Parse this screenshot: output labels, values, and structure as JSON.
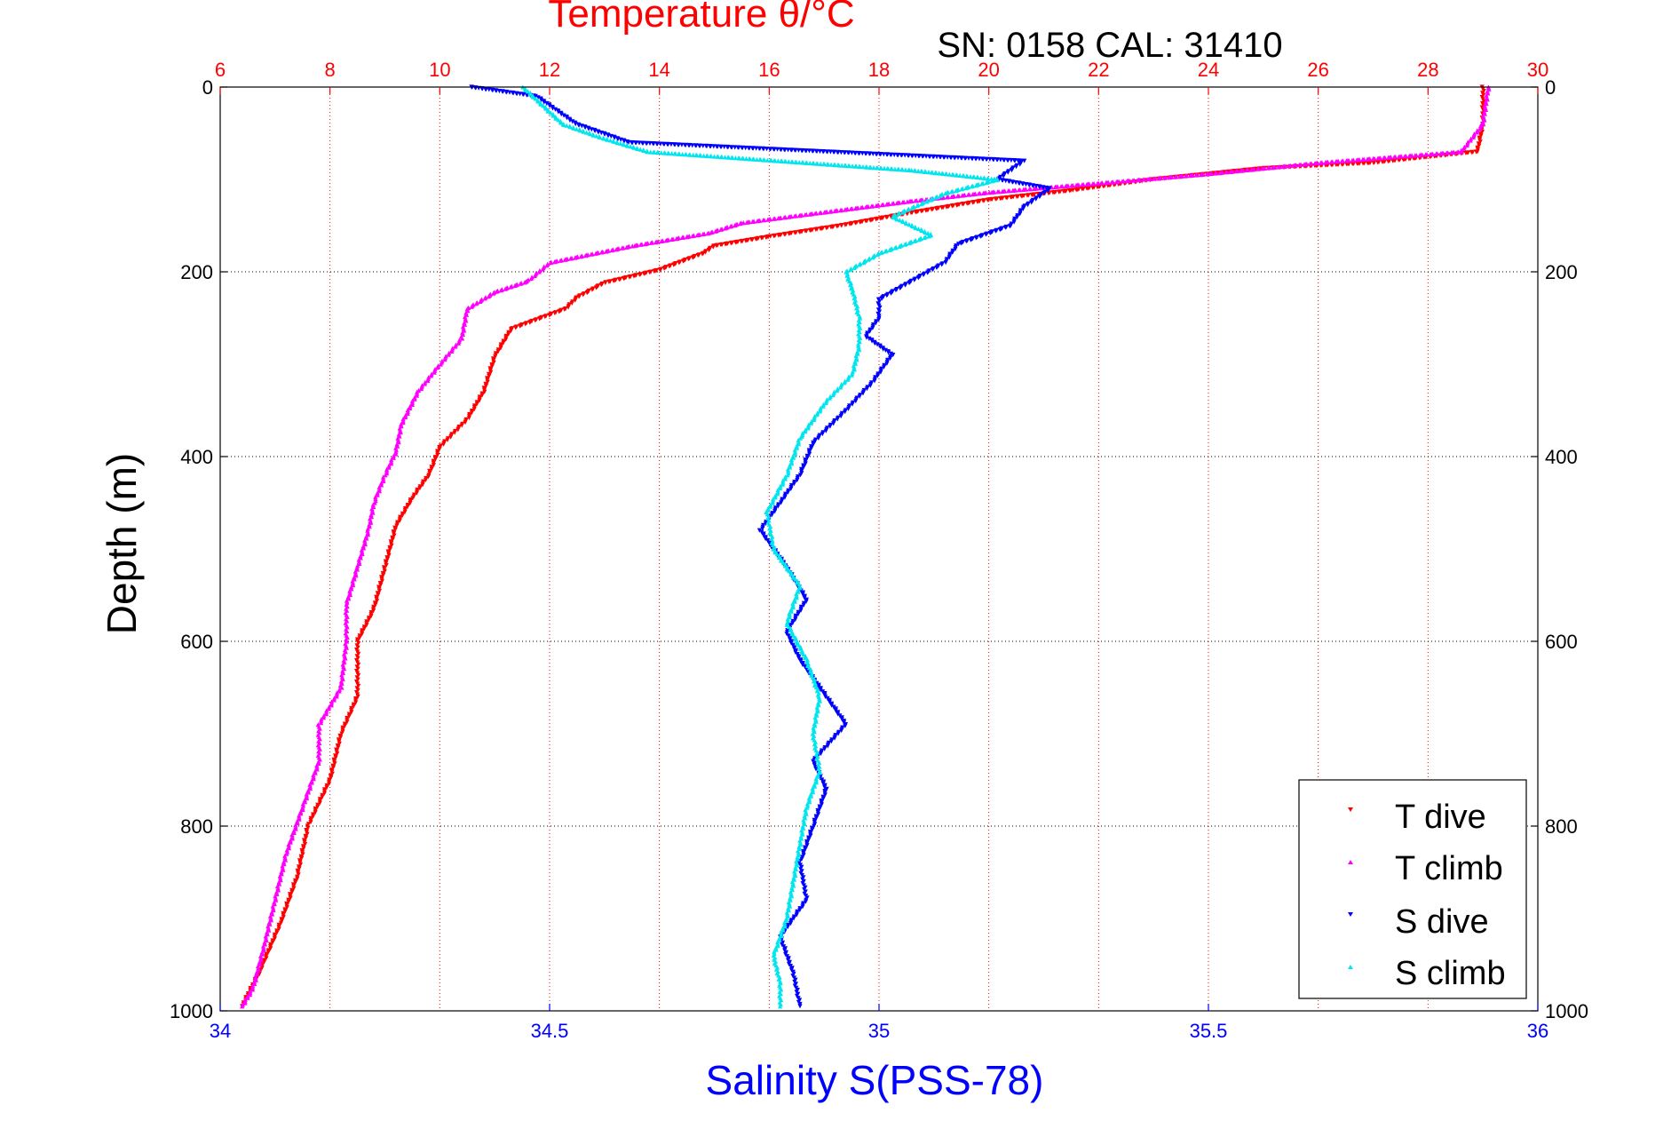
{
  "chart_data": {
    "type": "scatter",
    "title": "Temperature θ/°C",
    "subtitle": "SN: 0158  CAL: 31410",
    "xlabel": "Salinity S(PSS-78)",
    "ylabel": "Depth (m)",
    "x_bottom": {
      "lim": [
        34,
        36
      ],
      "ticks": [
        34,
        34.5,
        35,
        35.5,
        36
      ],
      "tick_labels": [
        "34",
        "34.5",
        "35",
        "35.5",
        "36"
      ],
      "color": "#0000ff"
    },
    "x_top": {
      "lim": [
        6,
        30
      ],
      "ticks": [
        6,
        8,
        10,
        12,
        14,
        16,
        18,
        20,
        22,
        24,
        26,
        28,
        30
      ],
      "tick_labels": [
        "6",
        "8",
        "10",
        "12",
        "14",
        "16",
        "18",
        "20",
        "22",
        "24",
        "26",
        "28",
        "30"
      ],
      "color": "#ff0000"
    },
    "y": {
      "lim": [
        0,
        1000
      ],
      "reversed": true,
      "ticks": [
        0,
        200,
        400,
        600,
        800,
        1000
      ],
      "tick_labels": [
        "0",
        "200",
        "400",
        "600",
        "800",
        "1000"
      ]
    },
    "grid": true,
    "legend": {
      "position": "bottom-right",
      "entries": [
        "T dive",
        "T climb",
        "S dive",
        "S climb"
      ]
    },
    "series": [
      {
        "name": "T dive",
        "axis": "temperature",
        "marker": "triangle-down",
        "color": "#ff0000",
        "points": [
          [
            29.0,
            0
          ],
          [
            29.0,
            40
          ],
          [
            28.9,
            70
          ],
          [
            27.0,
            82
          ],
          [
            25.0,
            88
          ],
          [
            23.0,
            100
          ],
          [
            21.5,
            112
          ],
          [
            20.0,
            122
          ],
          [
            18.5,
            137
          ],
          [
            17.3,
            150
          ],
          [
            16.0,
            162
          ],
          [
            15.0,
            172
          ],
          [
            14.8,
            180
          ],
          [
            14.0,
            198
          ],
          [
            13.0,
            212
          ],
          [
            12.5,
            228
          ],
          [
            12.3,
            240
          ],
          [
            11.3,
            262
          ],
          [
            11.0,
            292
          ],
          [
            10.8,
            330
          ],
          [
            10.5,
            360
          ],
          [
            10.0,
            390
          ],
          [
            9.8,
            420
          ],
          [
            9.5,
            445
          ],
          [
            9.2,
            475
          ],
          [
            9.0,
            520
          ],
          [
            8.8,
            565
          ],
          [
            8.5,
            600
          ],
          [
            8.5,
            660
          ],
          [
            8.2,
            700
          ],
          [
            8.0,
            750
          ],
          [
            7.6,
            800
          ],
          [
            7.4,
            855
          ],
          [
            7.1,
            905
          ],
          [
            6.7,
            960
          ],
          [
            6.4,
            995
          ]
        ]
      },
      {
        "name": "T climb",
        "axis": "temperature",
        "marker": "triangle-up",
        "color": "#ff00ff",
        "points": [
          [
            29.1,
            0
          ],
          [
            29.0,
            40
          ],
          [
            28.6,
            70
          ],
          [
            26.0,
            82
          ],
          [
            24.0,
            94
          ],
          [
            22.0,
            104
          ],
          [
            20.0,
            114
          ],
          [
            18.5,
            124
          ],
          [
            16.8,
            137
          ],
          [
            15.5,
            147
          ],
          [
            14.9,
            158
          ],
          [
            13.5,
            172
          ],
          [
            12.0,
            190
          ],
          [
            11.6,
            210
          ],
          [
            11.0,
            222
          ],
          [
            10.5,
            240
          ],
          [
            10.4,
            272
          ],
          [
            10.0,
            300
          ],
          [
            9.6,
            330
          ],
          [
            9.3,
            365
          ],
          [
            9.2,
            395
          ],
          [
            9.0,
            420
          ],
          [
            8.8,
            450
          ],
          [
            8.7,
            480
          ],
          [
            8.5,
            520
          ],
          [
            8.3,
            560
          ],
          [
            8.3,
            600
          ],
          [
            8.2,
            650
          ],
          [
            7.8,
            690
          ],
          [
            7.8,
            730
          ],
          [
            7.5,
            780
          ],
          [
            7.2,
            830
          ],
          [
            7.0,
            880
          ],
          [
            6.8,
            930
          ],
          [
            6.6,
            975
          ],
          [
            6.4,
            995
          ]
        ]
      },
      {
        "name": "S dive",
        "axis": "salinity",
        "marker": "triangle-down",
        "color": "#0000ff",
        "points": [
          [
            34.38,
            0
          ],
          [
            34.48,
            10
          ],
          [
            34.54,
            40
          ],
          [
            34.62,
            60
          ],
          [
            35.22,
            80
          ],
          [
            35.18,
            100
          ],
          [
            35.26,
            110
          ],
          [
            35.22,
            130
          ],
          [
            35.2,
            150
          ],
          [
            35.12,
            170
          ],
          [
            35.1,
            190
          ],
          [
            35.05,
            210
          ],
          [
            35.0,
            230
          ],
          [
            35.0,
            250
          ],
          [
            34.98,
            270
          ],
          [
            35.02,
            290
          ],
          [
            34.99,
            320
          ],
          [
            34.95,
            350
          ],
          [
            34.9,
            385
          ],
          [
            34.88,
            420
          ],
          [
            34.85,
            450
          ],
          [
            34.82,
            480
          ],
          [
            34.86,
            520
          ],
          [
            34.89,
            555
          ],
          [
            34.86,
            590
          ],
          [
            34.88,
            620
          ],
          [
            34.92,
            660
          ],
          [
            34.95,
            690
          ],
          [
            34.9,
            730
          ],
          [
            34.92,
            760
          ],
          [
            34.9,
            800
          ],
          [
            34.88,
            840
          ],
          [
            34.89,
            880
          ],
          [
            34.85,
            920
          ],
          [
            34.87,
            960
          ],
          [
            34.88,
            995
          ]
        ]
      },
      {
        "name": "S climb",
        "axis": "salinity",
        "marker": "triangle-up",
        "color": "#00e5ee",
        "points": [
          [
            34.46,
            0
          ],
          [
            34.49,
            20
          ],
          [
            34.52,
            40
          ],
          [
            34.58,
            55
          ],
          [
            34.65,
            70
          ],
          [
            35.05,
            90
          ],
          [
            35.18,
            100
          ],
          [
            35.1,
            115
          ],
          [
            35.02,
            140
          ],
          [
            35.08,
            160
          ],
          [
            35.0,
            180
          ],
          [
            34.95,
            200
          ],
          [
            34.96,
            220
          ],
          [
            34.97,
            250
          ],
          [
            34.97,
            280
          ],
          [
            34.96,
            310
          ],
          [
            34.92,
            340
          ],
          [
            34.88,
            380
          ],
          [
            34.86,
            420
          ],
          [
            34.83,
            460
          ],
          [
            34.84,
            500
          ],
          [
            34.88,
            540
          ],
          [
            34.86,
            580
          ],
          [
            34.89,
            620
          ],
          [
            34.91,
            660
          ],
          [
            34.9,
            700
          ],
          [
            34.91,
            740
          ],
          [
            34.89,
            780
          ],
          [
            34.88,
            820
          ],
          [
            34.87,
            860
          ],
          [
            34.86,
            900
          ],
          [
            34.84,
            940
          ],
          [
            34.85,
            970
          ],
          [
            34.85,
            995
          ]
        ]
      }
    ]
  }
}
